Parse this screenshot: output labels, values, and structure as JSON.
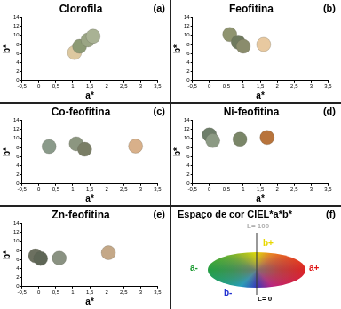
{
  "chart_data": [
    {
      "type": "scatter",
      "title": "Clorofila",
      "annotation": "(a)",
      "x_label": "a*",
      "y_label": "b*",
      "x": [
        1.05,
        1.2,
        1.45,
        1.6
      ],
      "values": [
        6.2,
        7.6,
        9.0,
        9.8
      ],
      "colors": [
        "#dcc8a0",
        "#8c9a74",
        "#9aa584",
        "#a9b294"
      ],
      "marker": "circle",
      "xlim": [
        -0.5,
        3.5
      ],
      "xticks": [
        {
          "value": -0.5,
          "label": "-0,5"
        },
        0,
        {
          "value": 0.5,
          "label": "0,5"
        },
        1,
        {
          "value": 1.5,
          "label": "1,5"
        },
        2,
        {
          "value": 2.5,
          "label": "2,5"
        },
        3,
        {
          "value": 3.5,
          "label": "3,5"
        }
      ],
      "ylim": [
        0,
        14
      ],
      "yticks": [
        0,
        2,
        4,
        6,
        8,
        10,
        12,
        14
      ],
      "grid": false
    },
    {
      "type": "scatter",
      "title": "Feofitina",
      "annotation": "(b)",
      "x_label": "a*",
      "y_label": "b*",
      "x": [
        0.6,
        0.85,
        1.0,
        1.6
      ],
      "values": [
        10.2,
        8.5,
        7.6,
        8.0
      ],
      "colors": [
        "#8f9470",
        "#6f7a5e",
        "#8a8c6c",
        "#e8c9a0"
      ],
      "marker": "circle",
      "xlim": [
        -0.5,
        3.5
      ],
      "xticks": [
        {
          "value": -0.5,
          "label": "-0,5"
        },
        0,
        {
          "value": 0.5,
          "label": "0,5"
        },
        1,
        {
          "value": 1.5,
          "label": "1,5"
        },
        2,
        {
          "value": 2.5,
          "label": "2,5"
        },
        3,
        {
          "value": 3.5,
          "label": "3,5"
        }
      ],
      "ylim": [
        0,
        14
      ],
      "yticks": [
        0,
        2,
        4,
        6,
        8,
        10,
        12,
        14
      ],
      "grid": false
    },
    {
      "type": "scatter",
      "title": "Co-feofitina",
      "annotation": "(c)",
      "x_label": "a*",
      "y_label": "b*",
      "x": [
        0.3,
        1.1,
        1.35,
        2.85
      ],
      "values": [
        8.2,
        8.8,
        7.6,
        8.3
      ],
      "colors": [
        "#8a9a8a",
        "#8c9680",
        "#7a7e66",
        "#d8b08a"
      ],
      "marker": "circle",
      "xlim": [
        -0.5,
        3.5
      ],
      "xticks": [
        {
          "value": -0.5,
          "label": "-0,5"
        },
        0,
        {
          "value": 0.5,
          "label": "0,5"
        },
        1,
        {
          "value": 1.5,
          "label": "1,5"
        },
        2,
        {
          "value": 2.5,
          "label": "2,5"
        },
        3,
        {
          "value": 3.5,
          "label": "3,5"
        }
      ],
      "ylim": [
        0,
        14
      ],
      "yticks": [
        0,
        2,
        4,
        6,
        8,
        10,
        12,
        14
      ],
      "grid": false
    },
    {
      "type": "scatter",
      "title": "Ni-feofitina",
      "annotation": "(d)",
      "x_label": "a*",
      "y_label": "b*",
      "x": [
        0.0,
        0.1,
        0.9,
        1.7
      ],
      "values": [
        10.8,
        9.5,
        9.8,
        10.2
      ],
      "colors": [
        "#6e7e6a",
        "#8c9a84",
        "#7a8668",
        "#b8743c"
      ],
      "marker": "circle",
      "xlim": [
        -0.5,
        3.5
      ],
      "xticks": [
        {
          "value": -0.5,
          "label": "-0,5"
        },
        0,
        {
          "value": 0.5,
          "label": "0,5"
        },
        1,
        {
          "value": 1.5,
          "label": "1,5"
        },
        2,
        {
          "value": 2.5,
          "label": "2,5"
        },
        3,
        {
          "value": 3.5,
          "label": "3,5"
        }
      ],
      "ylim": [
        0,
        14
      ],
      "yticks": [
        0,
        2,
        4,
        6,
        8,
        10,
        12,
        14
      ],
      "grid": false
    },
    {
      "type": "scatter",
      "title": "Zn-feofitina",
      "annotation": "(e)",
      "x_label": "a*",
      "y_label": "b*",
      "x": [
        -0.1,
        0.05,
        0.6,
        2.05
      ],
      "values": [
        6.8,
        6.2,
        6.3,
        7.5
      ],
      "colors": [
        "#6c7060",
        "#5e6656",
        "#8a9282",
        "#c4a888"
      ],
      "marker": "circle",
      "xlim": [
        -0.5,
        3.5
      ],
      "xticks": [
        {
          "value": -0.5,
          "label": "-0,5"
        },
        0,
        {
          "value": 0.5,
          "label": "0,5"
        },
        1,
        {
          "value": 1.5,
          "label": "1,5"
        },
        2,
        {
          "value": 2.5,
          "label": "2,5"
        },
        3,
        {
          "value": 3.5,
          "label": "3,5"
        }
      ],
      "ylim": [
        0,
        14
      ],
      "yticks": [
        0,
        2,
        4,
        6,
        8,
        10,
        12,
        14
      ],
      "grid": false
    }
  ],
  "diagram": {
    "title": "Espaço de cor CIEL*a*b*",
    "annotation": "(f)",
    "labels": {
      "top": {
        "text": "L= 100",
        "color": "#b0b0b0"
      },
      "b_plus": {
        "text": "b+",
        "color": "#e8d800"
      },
      "a_minus": {
        "text": "a-",
        "color": "#1a9a30"
      },
      "a_plus": {
        "text": "a+",
        "color": "#e01818"
      },
      "b_minus": {
        "text": "b-",
        "color": "#2030d0"
      },
      "bottom": {
        "text": "L= 0",
        "color": "#000000"
      }
    }
  }
}
